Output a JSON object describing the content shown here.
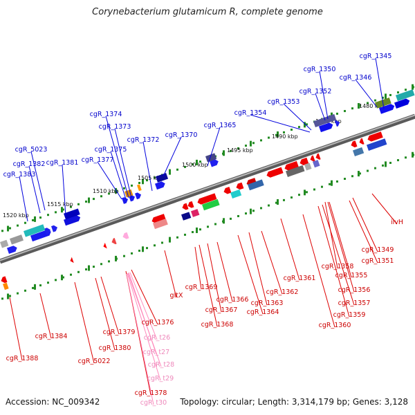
{
  "title": "Corynebacterium glutamicum R, complete genome",
  "footer": {
    "accession": "Accession: NC_009342",
    "topology": "Topology: circular; Length: 3,314,179 bp; Genes: 3,128"
  },
  "colors": {
    "forward_label": "#0000cc",
    "reverse_label": "#cc0000",
    "trna_label": "#ee88bb",
    "forward_gene": "#0000ee",
    "reverse_gene": "#ee0000",
    "trna_gene": "#ff66cc",
    "axis": "#888888",
    "ruler": "#228b22"
  },
  "ruler_labels": [
    "1520 kbp",
    "1515 kbp",
    "1510 kbp",
    "1505 kbp",
    "1500 kbp",
    "1495 kbp",
    "1490 kbp",
    "1485 kbp",
    "1480 kbp"
  ],
  "forward_labels": [
    "cgR_1345",
    "cgR_1346",
    "cgR_1350",
    "cgR_1352",
    "cgR_1353",
    "cgR_1354",
    "cgR_1365",
    "cgR_1370",
    "cgR_1372",
    "cgR_1373",
    "cgR_1374",
    "cgR_1375",
    "cgR_1377",
    "cgR_1381",
    "cgR_1382",
    "cgR_1383",
    "cgR_5023"
  ],
  "reverse_labels": [
    "ilvH",
    "cgR_1349",
    "cgR_1351",
    "cgR_1358",
    "cgR_1355",
    "cgR_1356",
    "cgR_1357",
    "cgR_1359",
    "cgR_1360",
    "cgR_1361",
    "cgR_1362",
    "cgR_1363",
    "cgR_1364",
    "cgR_1366",
    "cgR_1367",
    "cgR_1368",
    "cgR_1369",
    "gltX",
    "cgR_1376",
    "cgR_1378",
    "cgR_1379",
    "cgR_1380",
    "cgR_5022",
    "cgR_1384",
    "cgR_1388"
  ],
  "trna_labels": [
    "cgR_t26",
    "cgR_t27",
    "cgR_t28",
    "cgR_t29",
    "cgR_t30"
  ]
}
